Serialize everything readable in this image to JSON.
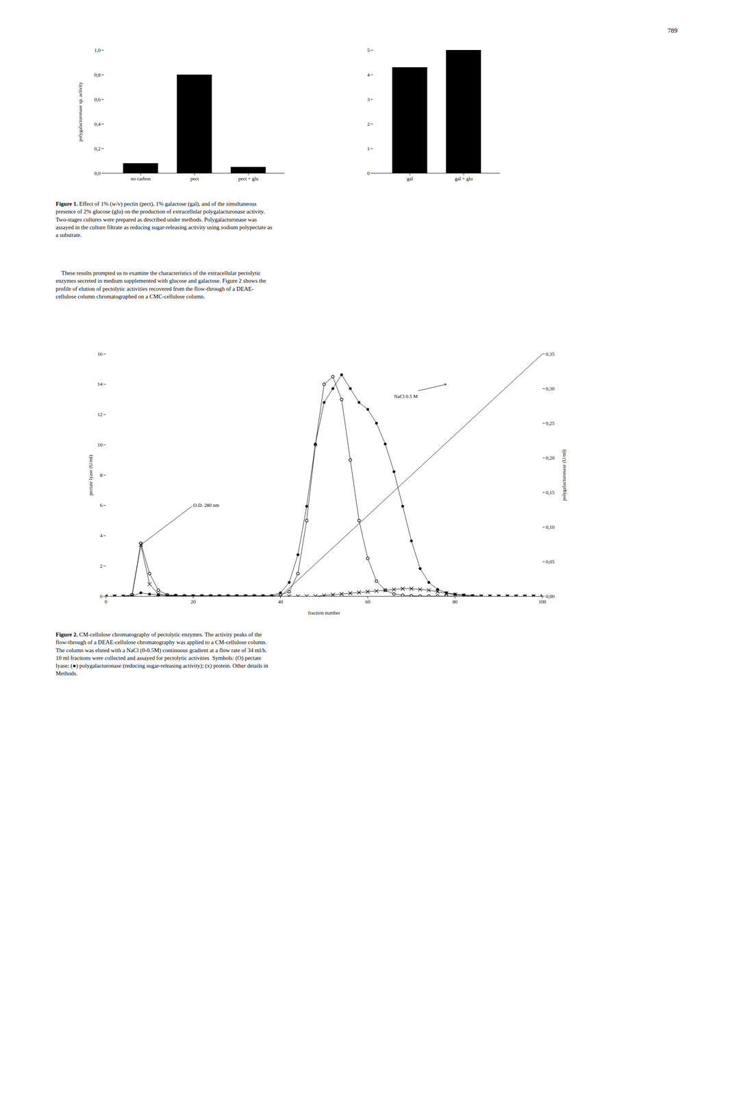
{
  "page_number": "789",
  "paragraph": "    These results prompted us to examine the characteristics of the extracellular pectolytic\nenzymes secreted in medium supplemented with glucose and galactose. Figure 2 shows the\nprofile of elution of pectolytic activities recovered from the flow-through of a DEAE-\ncellulose column chromatographed on a CMC-cellulose column.",
  "chart_data": [
    {
      "type": "bar",
      "categories": [
        "no carbon",
        "pect",
        "pect + glu"
      ],
      "values": [
        0.08,
        0.8,
        0.05
      ],
      "ylabel": "polygalacturonase sp. activity",
      "ylim": [
        0,
        1.0
      ],
      "yticks": [
        {
          "value": 0.0,
          "label": "0,0"
        },
        {
          "value": 0.2,
          "label": "0,2"
        },
        {
          "value": 0.4,
          "label": "0,4"
        },
        {
          "value": 0.6,
          "label": "0,6"
        },
        {
          "value": 0.8,
          "label": "0,8"
        },
        {
          "value": 1.0,
          "label": "1,0"
        }
      ],
      "caption_label": "Figure 1.",
      "caption": " Effect of 1% (w/v) pectin (pect), 1% galactose (gal), and of the simultaneous\npresence of 2% glucose (glu) on the production of extracellular polygalacturonase activity.\nTwo-stages cultures were prepared as described under methods. Polygalacturonase was\nassayed in the culture filtrate as reducing sugar-releasing activity using sodium polypectate as\na substrate."
    },
    {
      "type": "bar",
      "categories": [
        "gal",
        "gal + glu"
      ],
      "values": [
        4.3,
        5.0
      ],
      "ylim": [
        0,
        5
      ],
      "yticks": [
        0,
        1,
        2,
        3,
        4,
        5
      ]
    },
    {
      "type": "line",
      "x": [
        0,
        2,
        4,
        6,
        8,
        10,
        12,
        14,
        16,
        18,
        20,
        22,
        24,
        26,
        28,
        30,
        32,
        34,
        36,
        38,
        40,
        42,
        44,
        46,
        48,
        50,
        52,
        54,
        56,
        58,
        60,
        62,
        64,
        66,
        68,
        70,
        72,
        74,
        76,
        78,
        80,
        82,
        84,
        86,
        88,
        90,
        92,
        94,
        96,
        98,
        100
      ],
      "series": [
        {
          "marker": "open circle",
          "values": [
            0,
            0,
            0,
            0.1,
            3.5,
            1.5,
            0.4,
            0.1,
            0.05,
            0.02,
            0.01,
            0.01,
            0.01,
            0.01,
            0.01,
            0.01,
            0.01,
            0.01,
            0.01,
            0.01,
            0.1,
            0.3,
            1.5,
            5.0,
            10.0,
            14.0,
            14.5,
            13.0,
            9.0,
            5.0,
            2.5,
            1.0,
            0.4,
            0.15,
            0.07,
            0.03,
            0.01,
            0.01,
            0.01,
            0.01,
            0.01,
            0,
            0,
            0,
            0,
            0,
            0,
            0,
            0,
            0,
            0
          ]
        },
        {
          "marker": "circle",
          "axis": "y2",
          "values": [
            0,
            0,
            0,
            0,
            0.005,
            0.003,
            0.002,
            0.001,
            0.001,
            0.001,
            0.001,
            0.001,
            0.001,
            0.001,
            0.001,
            0.001,
            0.001,
            0.001,
            0.001,
            0.001,
            0.005,
            0.02,
            0.06,
            0.13,
            0.22,
            0.28,
            0.3,
            0.32,
            0.3,
            0.28,
            0.27,
            0.25,
            0.22,
            0.18,
            0.13,
            0.08,
            0.04,
            0.02,
            0.01,
            0.005,
            0.003,
            0.002,
            0.001,
            0,
            0,
            0,
            0,
            0,
            0,
            0,
            0
          ]
        },
        {
          "marker": "x",
          "values": [
            0,
            0,
            0,
            0.05,
            3.4,
            0.8,
            0.15,
            0.04,
            0.01,
            0,
            0,
            0,
            0,
            0,
            0,
            0,
            0,
            0,
            0,
            0,
            0,
            0,
            0,
            0,
            0,
            0.05,
            0.1,
            0.15,
            0.2,
            0.25,
            0.3,
            0.35,
            0.4,
            0.45,
            0.5,
            0.5,
            0.45,
            0.4,
            0.3,
            0.2,
            0.1,
            0.05,
            0,
            0,
            0,
            0,
            0,
            0,
            0,
            0,
            0
          ]
        },
        {
          "marker": "none",
          "x": [
            40,
            100
          ],
          "values": [
            0,
            16
          ]
        }
      ],
      "xlabel": "fraction number",
      "ylabel": "pectate lyase (U/ml)",
      "y2label": "polygalacturonase (U/ml)",
      "xlim": [
        0,
        100
      ],
      "xticks": [
        0,
        20,
        40,
        60,
        80,
        100
      ],
      "ylim": [
        0,
        16
      ],
      "yticks": [
        0,
        2,
        4,
        6,
        8,
        10,
        12,
        14,
        16
      ],
      "y2lim": [
        0,
        0.35
      ],
      "y2ticks": [
        {
          "value": 0.0,
          "label": "0,00"
        },
        {
          "value": 0.05,
          "label": "0,05"
        },
        {
          "value": 0.1,
          "label": "0,10"
        },
        {
          "value": 0.15,
          "label": "0,15"
        },
        {
          "value": 0.2,
          "label": "0,20"
        },
        {
          "value": 0.25,
          "label": "0,25"
        },
        {
          "value": 0.3,
          "label": "0,30"
        },
        {
          "value": 0.35,
          "label": "0,35"
        }
      ],
      "annotations": [
        {
          "text": "NaCl 0.5 M",
          "x": 66,
          "y": 13.2,
          "arrow_to": [
            78,
            14.0
          ]
        },
        {
          "text": "O.D. 280 nm",
          "x": 20,
          "y": 6.0,
          "arrow_to": [
            8,
            3.4
          ]
        }
      ],
      "caption_label": "Figure 2.",
      "caption": " CM-cellulose chromatography of pectolytic enzymes. The activity peaks of the\nflow-through of a DEAE-cellulose chromatography was applied to a CM-cellulose column.\nThe column was eluted with a NaCl (0-0.5M) continuous gradient at a flow rate of 34 ml/h.\n10 ml fractions were collected and assayed for pectolytic activities  Symbols: (O) pectate\nlyase; (●) polygalacturonase (reducing sugar-releasing activity); (x) protein. Other details in\nMethods."
    }
  ]
}
